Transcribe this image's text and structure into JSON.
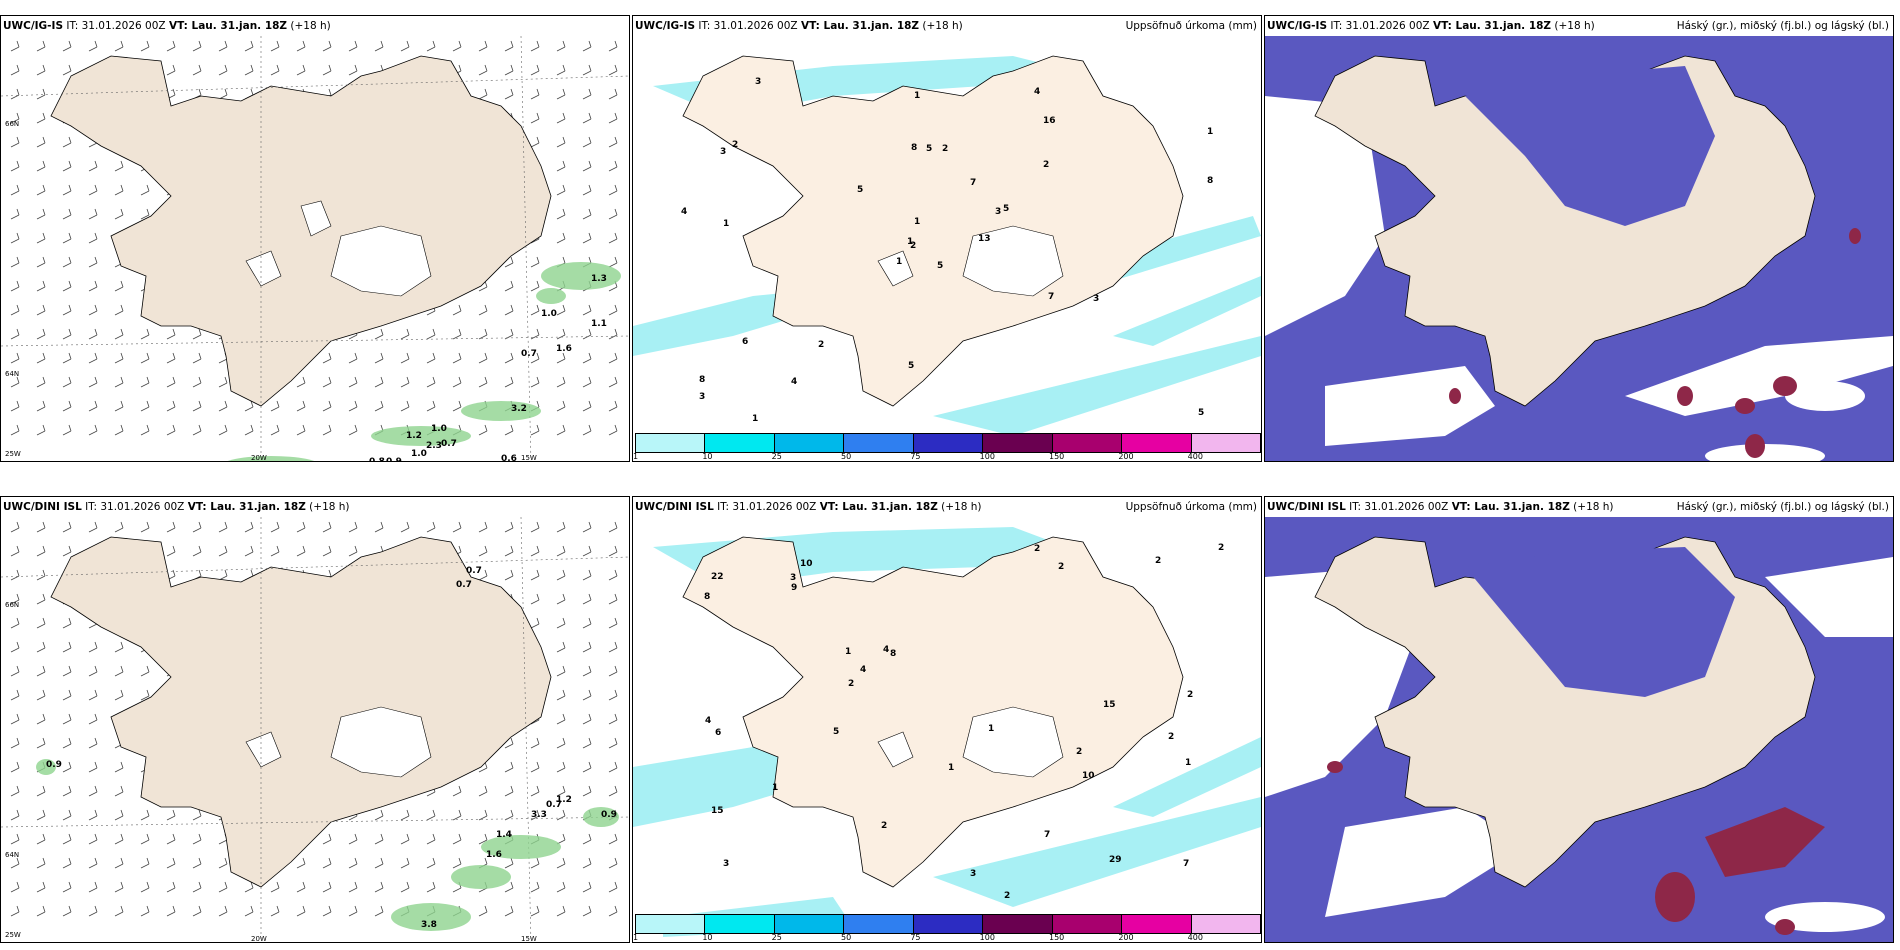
{
  "colors": {
    "land": "#f0e4d6",
    "land_dark": "#e6d8c6",
    "precip_light": "#a8f0f4",
    "cloud_dark": "#5a58c0",
    "cloud_light": "#3d8bef",
    "cloud_high": "#8e2748",
    "green": "#8fd48f"
  },
  "rows": [
    {
      "wind": {
        "model": "UWC/IG-IS",
        "it": "IT: 31.01.2026 00Z",
        "vt": "VT: Lau. 31.jan. 18Z",
        "lead": "(+18 h)",
        "axis": {
          "lat1": "66N",
          "lat2": "64N",
          "lat3": "25W",
          "lon1": "20W",
          "lon2": "15W"
        },
        "labels": [
          "1.3",
          "1.0",
          "1.1",
          "0.7",
          "1.6",
          "1.2",
          "1.0",
          "0.7",
          "3.2",
          "2.3",
          "1.0",
          "0.6",
          "0.8",
          "0.9"
        ]
      },
      "precip": {
        "model": "UWC/IG-IS",
        "it": "IT: 31.01.2026 00Z",
        "vt": "VT: Lau. 31.jan. 18Z",
        "lead": "(+18 h)",
        "right_title": "Uppsöfnuð úrkoma (mm)",
        "values": [
          "5",
          "3",
          "2",
          "8",
          "3",
          "2",
          "4",
          "2",
          "16",
          "13",
          "3",
          "5",
          "1",
          "1",
          "1",
          "2",
          "1",
          "8",
          "7",
          "6",
          "5",
          "3",
          "4",
          "5",
          "5",
          "3",
          "2",
          "1",
          "4",
          "7",
          "8",
          "1",
          "5",
          "1"
        ]
      },
      "cloud": {
        "model": "UWC/IG-IS",
        "it": "IT: 31.01.2026 00Z",
        "vt": "VT: Lau. 31.jan. 18Z",
        "lead": "(+18 h)",
        "right_title": "Háský (gr.), miðský (fj.bl.) og lágský (bl.)"
      }
    },
    {
      "wind": {
        "model": "UWC/DINI ISL",
        "it": "IT: 31.01.2026 00Z",
        "vt": "VT: Lau. 31.jan. 18Z",
        "lead": "(+18 h)",
        "axis": {
          "lat1": "66N",
          "lat2": "64N",
          "lat3": "25W",
          "lon1": "20W",
          "lon2": "15W"
        },
        "labels": [
          "0.7",
          "0.7",
          "0.9",
          "0.9",
          "1.2",
          "0.7",
          "3.3",
          "1.4",
          "1.6",
          "3.8"
        ]
      },
      "precip": {
        "model": "UWC/DINI ISL",
        "it": "IT: 31.01.2026 00Z",
        "vt": "VT: Lau. 31.jan. 18Z",
        "lead": "(+18 h)",
        "right_title": "Uppsöfnuð úrkoma (mm)",
        "values": [
          "2",
          "2",
          "3",
          "10",
          "8",
          "29",
          "15",
          "2",
          "1",
          "2",
          "8",
          "4",
          "22",
          "7",
          "2",
          "2",
          "1",
          "1",
          "4",
          "1",
          "2",
          "2",
          "2",
          "1",
          "2",
          "3",
          "10",
          "6",
          "9",
          "15",
          "3",
          "7",
          "4",
          "5"
        ]
      },
      "cloud": {
        "model": "UWC/DINI ISL",
        "it": "IT: 31.01.2026 00Z",
        "vt": "VT: Lau. 31.jan. 18Z",
        "lead": "(+18 h)",
        "right_title": "Háský (gr.), miðský (fj.bl.) og lágský (bl.)"
      }
    }
  ],
  "colorbar": {
    "ticks": [
      "1",
      "10",
      "25",
      "50",
      "75",
      "100",
      "150",
      "200",
      "400"
    ],
    "colors": [
      "#b8f6f9",
      "#00e8f0",
      "#00b8ea",
      "#2f7ff0",
      "#2c2cc2",
      "#6a0050",
      "#a8006e",
      "#e600a2",
      "#f2b6ee"
    ]
  }
}
